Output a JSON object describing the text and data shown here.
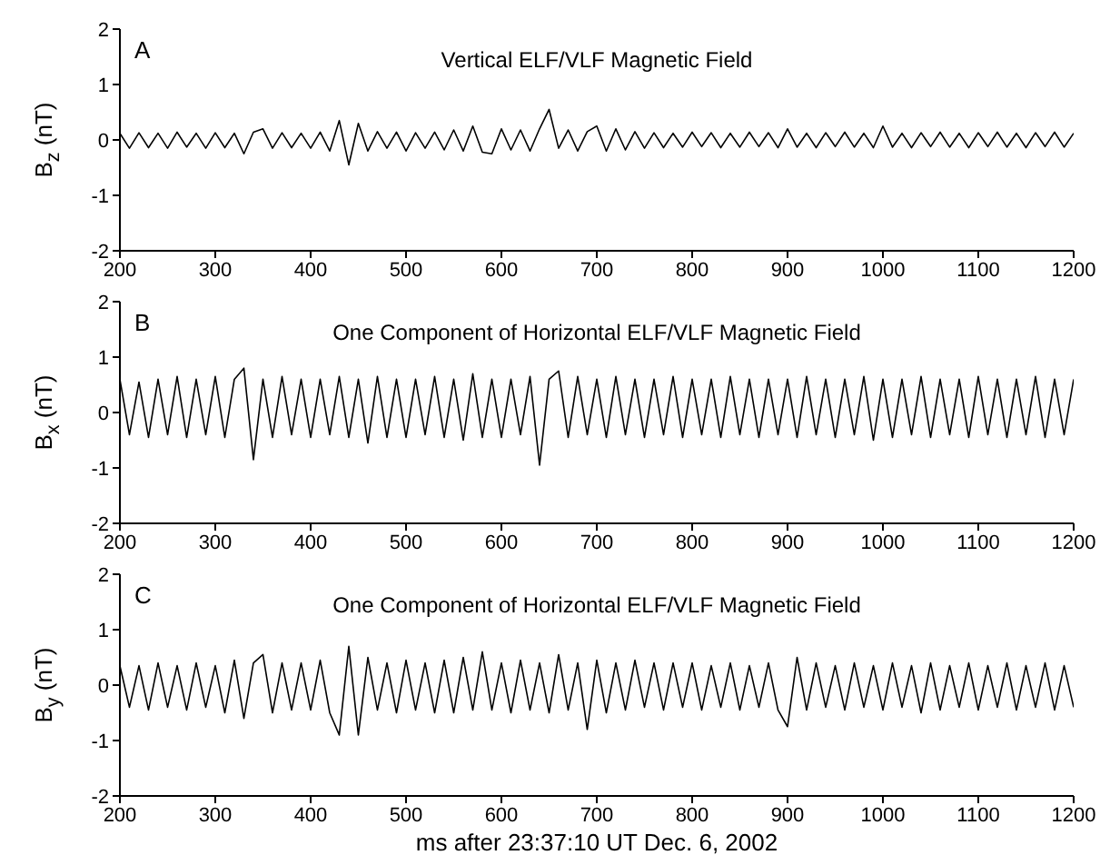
{
  "chart_data": [
    {
      "type": "line",
      "title": "Vertical ELF/VLF Magnetic Field",
      "ylabel": "B$_{z}$ (nT)",
      "annotations": [
        "A"
      ],
      "marker": "none",
      "x": [
        200,
        210,
        220,
        230,
        240,
        250,
        260,
        270,
        280,
        290,
        300,
        310,
        320,
        330,
        340,
        350,
        360,
        370,
        380,
        390,
        400,
        410,
        420,
        430,
        440,
        450,
        460,
        470,
        480,
        490,
        500,
        510,
        520,
        530,
        540,
        550,
        560,
        570,
        580,
        590,
        600,
        610,
        620,
        630,
        640,
        650,
        660,
        670,
        680,
        690,
        700,
        710,
        720,
        730,
        740,
        750,
        760,
        770,
        780,
        790,
        800,
        810,
        820,
        830,
        840,
        850,
        860,
        870,
        880,
        890,
        900,
        910,
        920,
        930,
        940,
        950,
        960,
        970,
        980,
        990,
        1000,
        1010,
        1020,
        1030,
        1040,
        1050,
        1060,
        1070,
        1080,
        1090,
        1100,
        1110,
        1120,
        1130,
        1140,
        1150,
        1160,
        1170,
        1180,
        1190,
        1200
      ],
      "series": [
        {
          "color": "#000000",
          "values": [
            0.12,
            -0.15,
            0.13,
            -0.14,
            0.12,
            -0.15,
            0.14,
            -0.13,
            0.12,
            -0.15,
            0.13,
            -0.14,
            0.12,
            -0.25,
            0.14,
            0.2,
            -0.15,
            0.13,
            -0.14,
            0.12,
            -0.15,
            0.14,
            -0.2,
            0.35,
            -0.45,
            0.3,
            -0.2,
            0.15,
            -0.15,
            0.14,
            -0.2,
            0.13,
            -0.15,
            0.14,
            -0.18,
            0.18,
            -0.2,
            0.25,
            -0.22,
            -0.25,
            0.2,
            -0.18,
            0.18,
            -0.2,
            0.2,
            0.55,
            -0.15,
            0.18,
            -0.2,
            0.15,
            0.25,
            -0.2,
            0.2,
            -0.18,
            0.15,
            -0.15,
            0.13,
            -0.14,
            0.12,
            -0.13,
            0.14,
            -0.12,
            0.13,
            -0.14,
            0.12,
            -0.13,
            0.14,
            -0.12,
            0.13,
            -0.14,
            0.2,
            -0.13,
            0.12,
            -0.14,
            0.13,
            -0.12,
            0.14,
            -0.13,
            0.12,
            -0.14,
            0.25,
            -0.13,
            0.12,
            -0.14,
            0.13,
            -0.12,
            0.14,
            -0.13,
            0.12,
            -0.14,
            0.13,
            -0.12,
            0.14,
            -0.13,
            0.12,
            -0.14,
            0.13,
            -0.12,
            0.14,
            -0.13,
            0.12
          ]
        }
      ],
      "xlim": [
        200,
        1200
      ],
      "xticks": [
        200,
        300,
        400,
        500,
        600,
        700,
        800,
        900,
        1000,
        1100,
        1200
      ],
      "ylim": [
        -2,
        2
      ],
      "yticks": [
        -2,
        -1,
        0,
        1,
        2
      ]
    },
    {
      "type": "line",
      "title": "One Component of Horizontal ELF/VLF Magnetic Field",
      "ylabel": "B$_{x}$ (nT)",
      "annotations": [
        "B"
      ],
      "marker": "none",
      "x": [
        200,
        210,
        220,
        230,
        240,
        250,
        260,
        270,
        280,
        290,
        300,
        310,
        320,
        330,
        340,
        350,
        360,
        370,
        380,
        390,
        400,
        410,
        420,
        430,
        440,
        450,
        460,
        470,
        480,
        490,
        500,
        510,
        520,
        530,
        540,
        550,
        560,
        570,
        580,
        590,
        600,
        610,
        620,
        630,
        640,
        650,
        660,
        670,
        680,
        690,
        700,
        710,
        720,
        730,
        740,
        750,
        760,
        770,
        780,
        790,
        800,
        810,
        820,
        830,
        840,
        850,
        860,
        870,
        880,
        890,
        900,
        910,
        920,
        930,
        940,
        950,
        960,
        970,
        980,
        990,
        1000,
        1010,
        1020,
        1030,
        1040,
        1050,
        1060,
        1070,
        1080,
        1090,
        1100,
        1110,
        1120,
        1130,
        1140,
        1150,
        1160,
        1170,
        1180,
        1190,
        1200
      ],
      "series": [
        {
          "color": "#000000",
          "values": [
            0.6,
            -0.4,
            0.55,
            -0.45,
            0.6,
            -0.4,
            0.65,
            -0.45,
            0.6,
            -0.4,
            0.65,
            -0.45,
            0.6,
            0.8,
            -0.85,
            0.6,
            -0.45,
            0.65,
            -0.4,
            0.6,
            -0.45,
            0.6,
            -0.4,
            0.65,
            -0.45,
            0.6,
            -0.55,
            0.65,
            -0.45,
            0.6,
            -0.45,
            0.6,
            -0.4,
            0.65,
            -0.45,
            0.6,
            -0.5,
            0.7,
            -0.45,
            0.6,
            -0.45,
            0.6,
            -0.4,
            0.65,
            -0.95,
            0.6,
            0.75,
            -0.45,
            0.65,
            -0.4,
            0.6,
            -0.45,
            0.65,
            -0.4,
            0.6,
            -0.45,
            0.6,
            -0.4,
            0.65,
            -0.45,
            0.6,
            -0.4,
            0.6,
            -0.45,
            0.65,
            -0.4,
            0.6,
            -0.45,
            0.6,
            -0.4,
            0.6,
            -0.45,
            0.65,
            -0.4,
            0.6,
            -0.45,
            0.6,
            -0.4,
            0.65,
            -0.5,
            0.6,
            -0.45,
            0.6,
            -0.4,
            0.65,
            -0.45,
            0.6,
            -0.4,
            0.6,
            -0.45,
            0.65,
            -0.4,
            0.6,
            -0.45,
            0.6,
            -0.4,
            0.65,
            -0.45,
            0.6,
            -0.4,
            0.6
          ]
        }
      ],
      "xlim": [
        200,
        1200
      ],
      "xticks": [
        200,
        300,
        400,
        500,
        600,
        700,
        800,
        900,
        1000,
        1100,
        1200
      ],
      "ylim": [
        -2,
        2
      ],
      "yticks": [
        -2,
        -1,
        0,
        1,
        2
      ]
    },
    {
      "type": "line",
      "title": "One Component of Horizontal ELF/VLF Magnetic Field",
      "ylabel": "B$_{y}$ (nT)",
      "xlabel": "ms after 23:37:10 UT Dec. 6, 2002",
      "annotations": [
        "C"
      ],
      "marker": "none",
      "x": [
        200,
        210,
        220,
        230,
        240,
        250,
        260,
        270,
        280,
        290,
        300,
        310,
        320,
        330,
        340,
        350,
        360,
        370,
        380,
        390,
        400,
        410,
        420,
        430,
        440,
        450,
        460,
        470,
        480,
        490,
        500,
        510,
        520,
        530,
        540,
        550,
        560,
        570,
        580,
        590,
        600,
        610,
        620,
        630,
        640,
        650,
        660,
        670,
        680,
        690,
        700,
        710,
        720,
        730,
        740,
        750,
        760,
        770,
        780,
        790,
        800,
        810,
        820,
        830,
        840,
        850,
        860,
        870,
        880,
        890,
        900,
        910,
        920,
        930,
        940,
        950,
        960,
        970,
        980,
        990,
        1000,
        1010,
        1020,
        1030,
        1040,
        1050,
        1060,
        1070,
        1080,
        1090,
        1100,
        1110,
        1120,
        1130,
        1140,
        1150,
        1160,
        1170,
        1180,
        1190,
        1200
      ],
      "series": [
        {
          "color": "#000000",
          "values": [
            0.35,
            -0.4,
            0.35,
            -0.45,
            0.4,
            -0.4,
            0.35,
            -0.45,
            0.4,
            -0.4,
            0.35,
            -0.5,
            0.45,
            -0.6,
            0.4,
            0.55,
            -0.5,
            0.4,
            -0.45,
            0.4,
            -0.45,
            0.45,
            -0.5,
            -0.9,
            0.7,
            -0.9,
            0.5,
            -0.45,
            0.4,
            -0.5,
            0.45,
            -0.45,
            0.4,
            -0.5,
            0.45,
            -0.5,
            0.5,
            -0.45,
            0.6,
            -0.45,
            0.4,
            -0.5,
            0.45,
            -0.45,
            0.4,
            -0.5,
            0.55,
            -0.45,
            0.4,
            -0.8,
            0.45,
            -0.5,
            0.4,
            -0.45,
            0.45,
            -0.4,
            0.4,
            -0.45,
            0.4,
            -0.4,
            0.4,
            -0.45,
            0.35,
            -0.4,
            0.4,
            -0.45,
            0.35,
            -0.4,
            0.4,
            -0.45,
            -0.75,
            0.5,
            -0.45,
            0.4,
            -0.4,
            0.35,
            -0.45,
            0.4,
            -0.4,
            0.35,
            -0.45,
            0.4,
            -0.4,
            0.35,
            -0.5,
            0.4,
            -0.45,
            0.35,
            -0.4,
            0.4,
            -0.45,
            0.35,
            -0.4,
            0.4,
            -0.45,
            0.35,
            -0.4,
            0.4,
            -0.45,
            0.35,
            -0.4
          ]
        }
      ],
      "xlim": [
        200,
        1200
      ],
      "xticks": [
        200,
        300,
        400,
        500,
        600,
        700,
        800,
        900,
        1000,
        1100,
        1200
      ],
      "ylim": [
        -2,
        2
      ],
      "yticks": [
        -2,
        -1,
        0,
        1,
        2
      ]
    }
  ]
}
